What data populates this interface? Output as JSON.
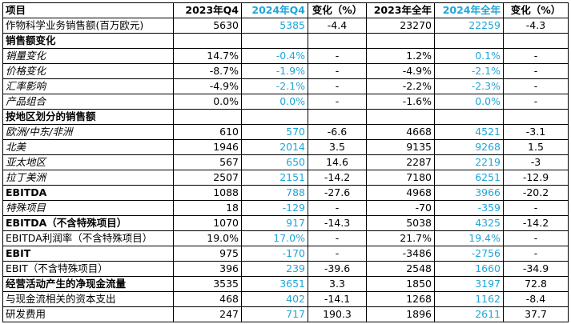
{
  "header": {
    "item": "项目",
    "q4_2023": "2023年Q4",
    "q4_2024": "2024年Q4",
    "chg_q": "变化（%）",
    "fy_2023": "2023年全年",
    "fy_2024": "2024年全年",
    "chg_y": "变化（%）"
  },
  "rows": [
    {
      "label": "作物科学业务销售额(百万欧元)",
      "q4_2023": "5630",
      "q4_2024": "5385",
      "chg_q": "-4.4",
      "fy_2023": "23270",
      "fy_2024": "22259",
      "chg_y": "-4.3",
      "style": "normal"
    },
    {
      "label": "销售额变化",
      "q4_2023": "",
      "q4_2024": "",
      "chg_q": "",
      "fy_2023": "",
      "fy_2024": "",
      "chg_y": "",
      "style": "section"
    },
    {
      "label": "销量变化",
      "q4_2023": "14.7%",
      "q4_2024": "-0.4%",
      "chg_q": "-",
      "fy_2023": "1.2%",
      "fy_2024": "0.1%",
      "chg_y": "-",
      "style": "italic"
    },
    {
      "label": "价格变化",
      "q4_2023": "-8.7%",
      "q4_2024": "-1.9%",
      "chg_q": "-",
      "fy_2023": "-4.9%",
      "fy_2024": "-2.1%",
      "chg_y": "-",
      "style": "italic"
    },
    {
      "label": "汇率影响",
      "q4_2023": "-4.9%",
      "q4_2024": "-2.1%",
      "chg_q": "-",
      "fy_2023": "-2.2%",
      "fy_2024": "-2.3%",
      "chg_y": "-",
      "style": "italic"
    },
    {
      "label": "产品组合",
      "q4_2023": "0.0%",
      "q4_2024": "0.0%",
      "chg_q": "-",
      "fy_2023": "-1.6%",
      "fy_2024": "0.0%",
      "chg_y": "-",
      "style": "italic"
    },
    {
      "label": "按地区划分的销售额",
      "q4_2023": "",
      "q4_2024": "",
      "chg_q": "",
      "fy_2023": "",
      "fy_2024": "",
      "chg_y": "",
      "style": "section"
    },
    {
      "label": "欧洲/中东/非洲",
      "q4_2023": "610",
      "q4_2024": "570",
      "chg_q": "-6.6",
      "fy_2023": "4668",
      "fy_2024": "4521",
      "chg_y": "-3.1",
      "style": "italic"
    },
    {
      "label": "北美",
      "q4_2023": "1946",
      "q4_2024": "2014",
      "chg_q": "3.5",
      "fy_2023": "9135",
      "fy_2024": "9268",
      "chg_y": "1.5",
      "style": "italic"
    },
    {
      "label": "亚太地区",
      "q4_2023": "567",
      "q4_2024": "650",
      "chg_q": "14.6",
      "fy_2023": "2287",
      "fy_2024": "2219",
      "chg_y": "-3",
      "style": "italic"
    },
    {
      "label": "拉丁美洲",
      "q4_2023": "2507",
      "q4_2024": "2151",
      "chg_q": "-14.2",
      "fy_2023": "7180",
      "fy_2024": "6251",
      "chg_y": "-12.9",
      "style": "italic"
    },
    {
      "label": "EBITDA",
      "q4_2023": "1088",
      "q4_2024": "788",
      "chg_q": "-27.6",
      "fy_2023": "4968",
      "fy_2024": "3966",
      "chg_y": "-20.2",
      "style": "boldlabel"
    },
    {
      "label": "特殊项目",
      "q4_2023": "18",
      "q4_2024": "-129",
      "chg_q": "-",
      "fy_2023": "-70",
      "fy_2024": "-359",
      "chg_y": "-",
      "style": "italic"
    },
    {
      "label": "EBITDA（不含特殊项目）",
      "q4_2023": "1070",
      "q4_2024": "917",
      "chg_q": "-14.3",
      "fy_2023": "5038",
      "fy_2024": "4325",
      "chg_y": "-14.2",
      "style": "boldlabel"
    },
    {
      "label": "EBITDA利润率（不含特殊项目）",
      "q4_2023": "19.0%",
      "q4_2024": "17.0%",
      "chg_q": "-",
      "fy_2023": "21.7%",
      "fy_2024": "19.4%",
      "chg_y": "-",
      "style": "normal"
    },
    {
      "label": "EBIT",
      "q4_2023": "975",
      "q4_2024": "-170",
      "chg_q": "-",
      "fy_2023": "-3486",
      "fy_2024": "-2756",
      "chg_y": "-",
      "style": "boldlabel"
    },
    {
      "label": "EBIT（不含特殊项目）",
      "q4_2023": "396",
      "q4_2024": "239",
      "chg_q": "-39.6",
      "fy_2023": "2548",
      "fy_2024": "1660",
      "chg_y": "-34.9",
      "style": "normal"
    },
    {
      "label": "经营活动产生的净现金流量",
      "q4_2023": "3535",
      "q4_2024": "3651",
      "chg_q": "3.3",
      "fy_2023": "1850",
      "fy_2024": "3197",
      "chg_y": "72.8",
      "style": "boldlabel"
    },
    {
      "label": "与现金流相关的资本支出",
      "q4_2023": "468",
      "q4_2024": "402",
      "chg_q": "-14.1",
      "fy_2023": "1268",
      "fy_2024": "1162",
      "chg_y": "-8.4",
      "style": "normal"
    },
    {
      "label": "研发费用",
      "q4_2023": "247",
      "q4_2024": "717",
      "chg_q": "190.3",
      "fy_2023": "1896",
      "fy_2024": "2611",
      "chg_y": "37.7",
      "style": "normal"
    }
  ],
  "colors": {
    "highlight_2024": "#1fa5d8"
  }
}
